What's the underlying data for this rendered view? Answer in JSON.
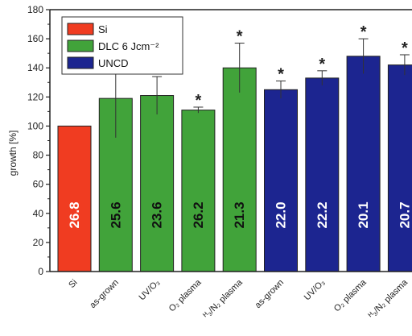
{
  "chart_data": {
    "type": "bar",
    "ylabel": "growth [%]",
    "ylim": [
      0,
      180
    ],
    "yticks": [
      0,
      20,
      40,
      60,
      80,
      100,
      120,
      140,
      160,
      180
    ],
    "grid": false,
    "legend_position": "top-left",
    "categories": [
      "Si",
      "as-grown",
      "UV/O3",
      "O2 plasma",
      "H3/N2 plasma",
      "as-grown",
      "UV/O3",
      "O2 plasma",
      "H3/N2 plasma"
    ],
    "category_display": [
      "Si",
      "as-grown",
      "UV/O₃",
      "O₂ plasma",
      "ᴴ₃/N₂ plasma",
      "as-grown",
      "UV/O₃",
      "O₂ plasma",
      "ᴴ₃/N₂ plasma"
    ],
    "series": [
      {
        "name": "Si",
        "color": "#f03c21",
        "indices": [
          0
        ]
      },
      {
        "name": "DLC 6 Jcm⁻²",
        "color": "#41a33a",
        "indices": [
          1,
          2,
          3,
          4
        ]
      },
      {
        "name": "UNCD",
        "color": "#1c2590",
        "indices": [
          5,
          6,
          7,
          8
        ]
      }
    ],
    "values": [
      100,
      119,
      121,
      111,
      140,
      125,
      133,
      148,
      142
    ],
    "errors": [
      0,
      27,
      13,
      2,
      17,
      6,
      5,
      12,
      7
    ],
    "significant": [
      false,
      false,
      true,
      true,
      true,
      true,
      true,
      true,
      true
    ],
    "bar_labels": [
      "26.8",
      "25.6",
      "23.6",
      "26.2",
      "21.3",
      "22.0",
      "22.2",
      "20.1",
      "20.7"
    ],
    "bar_label_colors": [
      "#ffffff",
      "#111111",
      "#111111",
      "#111111",
      "#111111",
      "#ffffff",
      "#ffffff",
      "#ffffff",
      "#ffffff"
    ],
    "significance_marker": "*"
  }
}
